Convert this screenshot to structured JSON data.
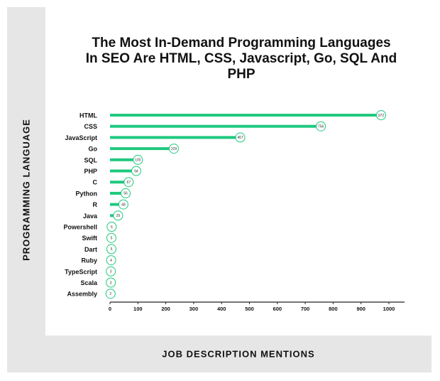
{
  "chart_data": {
    "type": "bar",
    "orientation": "horizontal",
    "title": "The Most In-Demand Programming Languages In SEO Are HTML, CSS, Javascript, Go, SQL And PHP",
    "xlabel": "JOB DESCRIPTION MENTIONS",
    "ylabel": "PROGRAMMING LANGUAGE",
    "categories": [
      "HTML",
      "CSS",
      "JavaScript",
      "Go",
      "SQL",
      "PHP",
      "C",
      "Python",
      "R",
      "Java",
      "Powershell",
      "Swift",
      "Dart",
      "Ruby",
      "TypeScript",
      "Scala",
      "Assembly"
    ],
    "values": [
      972,
      756,
      467,
      229,
      100,
      94,
      67,
      56,
      48,
      29,
      6,
      5,
      5,
      4,
      3,
      3,
      2
    ],
    "xlim": [
      0,
      1000
    ],
    "xticks": [
      0,
      100,
      200,
      300,
      400,
      500,
      600,
      700,
      800,
      900,
      1000
    ],
    "bar_color": "#1fc97e",
    "grid": false
  }
}
